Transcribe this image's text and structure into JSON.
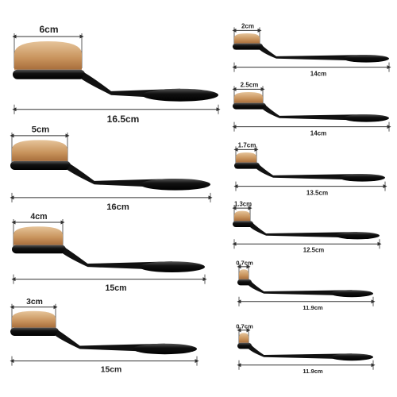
{
  "brushes": [
    {
      "head": "6cm",
      "length": "16.5cm"
    },
    {
      "head": "5cm",
      "length": "16cm"
    },
    {
      "head": "4cm",
      "length": "15cm"
    },
    {
      "head": "3cm",
      "length": "15cm"
    },
    {
      "head": "2cm",
      "length": "14cm"
    },
    {
      "head": "2.5cm",
      "length": "14cm"
    },
    {
      "head": "1.7cm",
      "length": "13.5cm"
    },
    {
      "head": "1.3cm",
      "length": "12.5cm"
    },
    {
      "head": "0.7cm",
      "length": "11.9cm"
    },
    {
      "head": "0.7cm",
      "length": "11.9cm"
    }
  ]
}
